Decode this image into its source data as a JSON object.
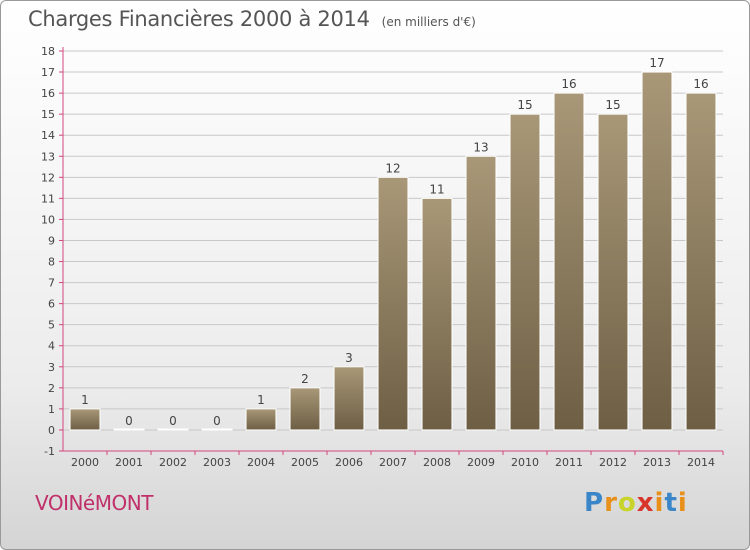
{
  "title": "Charges Financières 2000 à 2014",
  "unit_note": "(en milliers d'€)",
  "commune": "VOINéMONT",
  "logo": {
    "text": "Proxiti",
    "letter_colors": [
      "#3a86c8",
      "#e8901a",
      "#c8d42a",
      "#d8342a",
      "#e8901a",
      "#3a86c8",
      "#e8901a"
    ]
  },
  "colors": {
    "bar_top": "#a89878",
    "bar_bottom": "#6e5e44",
    "axis": "#d1477d",
    "grid": "#c8c8c8",
    "commune": "#c0306a"
  },
  "chart_data": {
    "type": "bar",
    "categories": [
      "2000",
      "2001",
      "2002",
      "2003",
      "2004",
      "2005",
      "2006",
      "2007",
      "2008",
      "2009",
      "2010",
      "2011",
      "2012",
      "2013",
      "2014"
    ],
    "values": [
      1,
      0,
      0,
      0,
      1,
      2,
      3,
      12,
      11,
      13,
      15,
      16,
      15,
      17,
      16
    ],
    "ylim": [
      -1,
      18
    ],
    "yticks": [
      -1,
      0,
      1,
      2,
      3,
      4,
      5,
      6,
      7,
      8,
      9,
      10,
      11,
      12,
      13,
      14,
      15,
      16,
      17,
      18
    ],
    "title": "Charges Financières 2000 à 2014",
    "xlabel": "",
    "ylabel": "",
    "grid": true
  }
}
